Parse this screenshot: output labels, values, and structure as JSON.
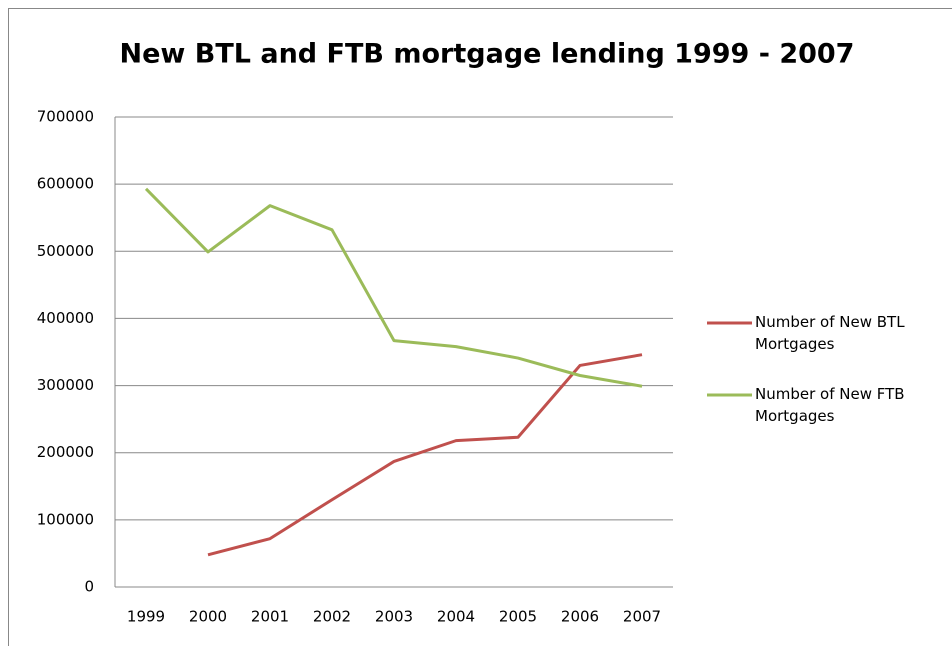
{
  "chart_data": {
    "type": "line",
    "title": "New BTL and FTB mortgage lending 1999 - 2007",
    "categories": [
      "1999",
      "2000",
      "2001",
      "2002",
      "2003",
      "2004",
      "2005",
      "2006",
      "2007"
    ],
    "series": [
      {
        "name": "Number of New BTL Mortgages",
        "color": "#c0504d",
        "values": [
          null,
          48000,
          72000,
          130000,
          187000,
          218000,
          223000,
          330000,
          346000
        ]
      },
      {
        "name": "Number of New FTB Mortgages",
        "color": "#9bbb59",
        "values": [
          593000,
          499000,
          568000,
          532000,
          367000,
          358000,
          341000,
          315000,
          299000
        ]
      }
    ],
    "ylim": [
      0,
      700000
    ],
    "yticks": [
      0,
      100000,
      200000,
      300000,
      400000,
      500000,
      600000,
      700000
    ],
    "grid": true,
    "legend": "right"
  }
}
